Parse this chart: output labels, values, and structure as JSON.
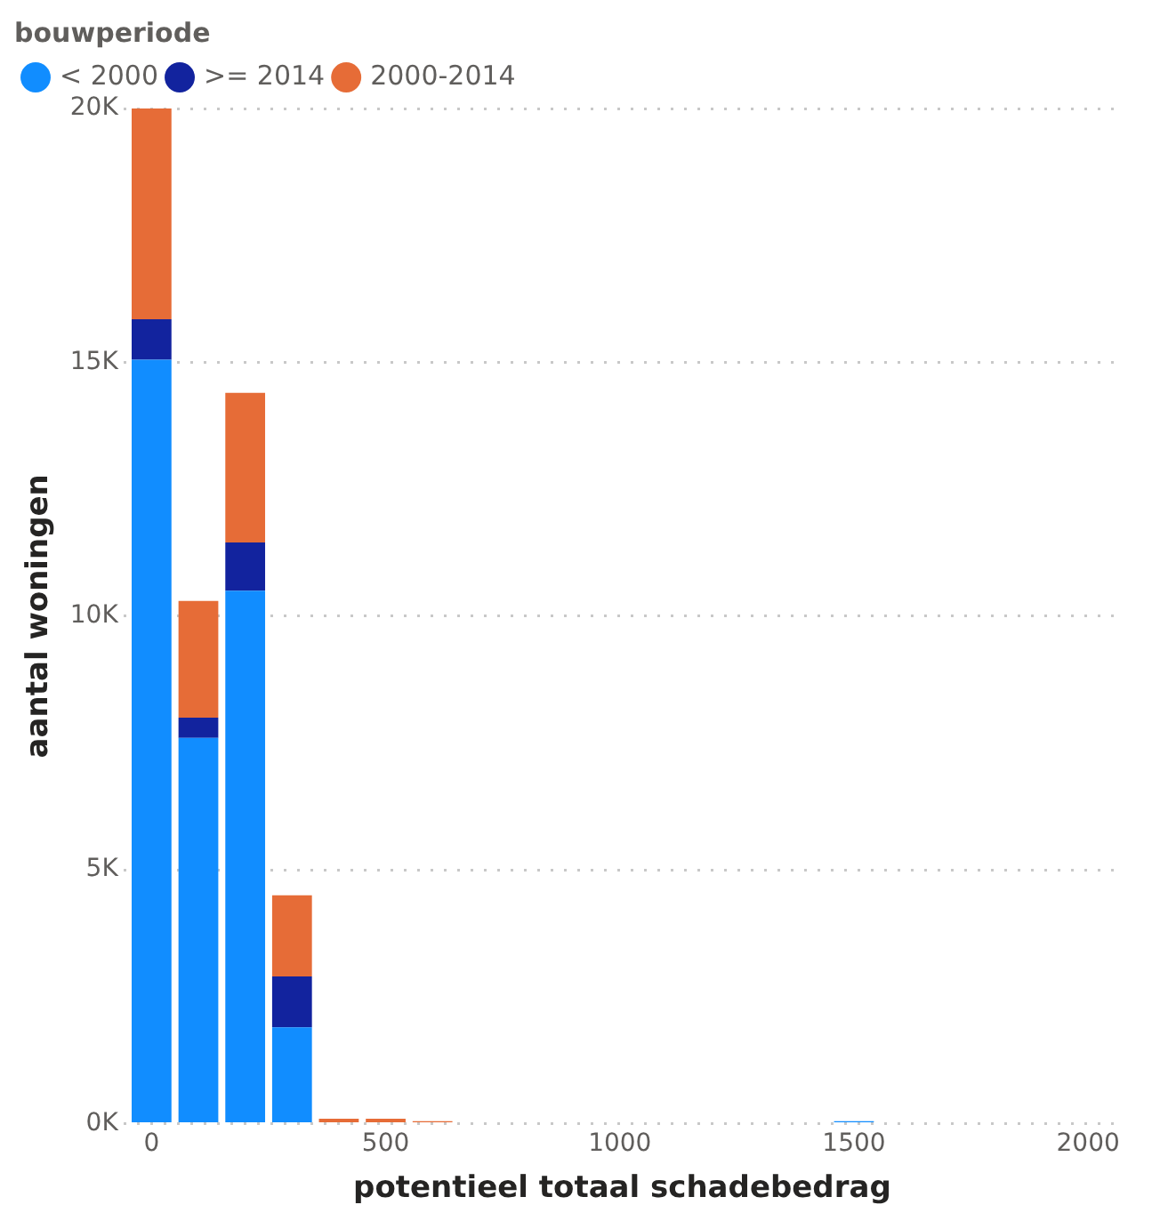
{
  "chart_data": {
    "type": "bar",
    "stacked": true,
    "xlabel": "potentieel totaal schadebedrag",
    "ylabel": "aantal woningen",
    "legend_title": "bouwperiode",
    "legend": "top left",
    "grid": "y",
    "x": [
      0,
      100,
      200,
      300,
      400,
      500,
      600,
      1500
    ],
    "series": [
      {
        "name": "< 2000",
        "color": "#118dff",
        "values": [
          15050,
          7600,
          10500,
          1900,
          null,
          null,
          null,
          50
        ]
      },
      {
        "name": ">= 2014",
        "color": "#12239e",
        "values": [
          800,
          400,
          950,
          1000,
          null,
          null,
          null,
          null
        ]
      },
      {
        "name": "2000-2014",
        "color": "#e66c37",
        "values": [
          4150,
          2300,
          2950,
          1600,
          100,
          100,
          50,
          null
        ]
      }
    ],
    "xlim": [
      -60,
      2070
    ],
    "xticks": [
      0,
      500,
      1000,
      1500,
      2000
    ],
    "ylim": [
      0,
      20000
    ],
    "yticks": [
      {
        "value": 0,
        "label": "0K"
      },
      {
        "value": 5000,
        "label": "5K"
      },
      {
        "value": 10000,
        "label": "10K"
      },
      {
        "value": 15000,
        "label": "15K"
      },
      {
        "value": 20000,
        "label": "20K"
      }
    ]
  }
}
